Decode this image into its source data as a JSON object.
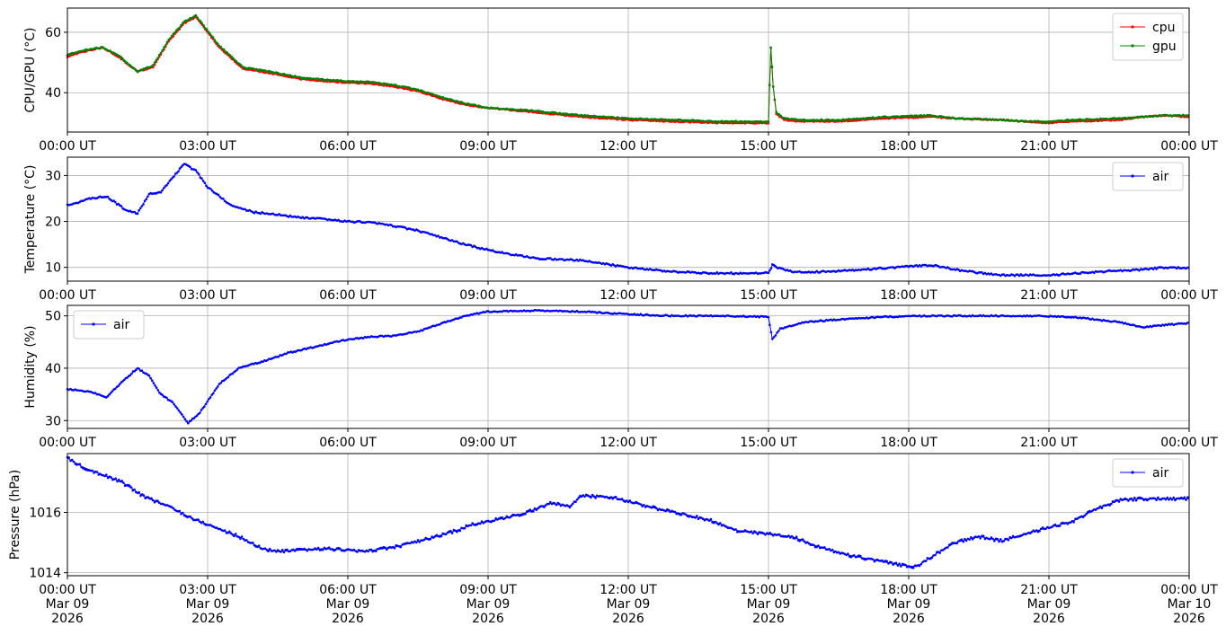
{
  "chart_data": [
    {
      "type": "line",
      "ylabel": "CPU/GPU (°C)",
      "xlim": [
        "2026-03-09T00:00",
        "2026-03-10T00:00"
      ],
      "ylim": [
        27,
        68
      ],
      "yticks": [
        40,
        60
      ],
      "xtick_labels": [
        "00:00 UT",
        "03:00 UT",
        "06:00 UT",
        "09:00 UT",
        "12:00 UT",
        "15:00 UT",
        "18:00 UT",
        "21:00 UT",
        "00:00 UT"
      ],
      "grid": true,
      "legend": "top-right",
      "series": [
        {
          "name": "cpu",
          "color": "#ff0000",
          "x": [
            "00:00",
            "00:20",
            "00:45",
            "01:05",
            "01:30",
            "01:50",
            "02:10",
            "02:30",
            "02:45",
            "03:15",
            "03:45",
            "04:30",
            "05:00",
            "05:45",
            "06:30",
            "07:00",
            "07:30",
            "08:00",
            "08:30",
            "09:00",
            "10:00",
            "11:00",
            "12:00",
            "13:00",
            "14:00",
            "15:00",
            "15:03",
            "15:06",
            "15:10",
            "15:20",
            "15:40",
            "16:30",
            "17:00",
            "17:30",
            "18:30",
            "19:00",
            "20:00",
            "20:30",
            "21:00",
            "21:30",
            "22:30",
            "23:00",
            "23:30",
            "24:00"
          ],
          "y": [
            52,
            53.5,
            55,
            52,
            47,
            48.5,
            57,
            63,
            65,
            55,
            48,
            46,
            44.5,
            43.5,
            43,
            42,
            40.5,
            38,
            36,
            35,
            33.5,
            32,
            31,
            30.5,
            30,
            30,
            55,
            42,
            33,
            31,
            30.5,
            30.5,
            31,
            31.5,
            32,
            31.5,
            31,
            30.5,
            30,
            30.5,
            31,
            32,
            32.5,
            32
          ]
        },
        {
          "name": "gpu",
          "color": "#008000",
          "x": [
            "00:00",
            "00:20",
            "00:45",
            "01:05",
            "01:30",
            "01:50",
            "02:10",
            "02:30",
            "02:45",
            "03:15",
            "03:45",
            "04:30",
            "05:00",
            "05:45",
            "06:30",
            "07:00",
            "07:30",
            "08:00",
            "08:30",
            "09:00",
            "10:00",
            "11:00",
            "12:00",
            "13:00",
            "14:00",
            "15:00",
            "15:03",
            "15:06",
            "15:10",
            "15:20",
            "15:40",
            "16:30",
            "17:00",
            "17:30",
            "18:30",
            "19:00",
            "20:00",
            "20:30",
            "21:00",
            "21:30",
            "22:30",
            "23:00",
            "23:30",
            "24:00"
          ],
          "y": [
            52.5,
            54,
            55,
            52.5,
            47,
            49,
            57.5,
            63.5,
            65.5,
            55.5,
            48.5,
            46.5,
            45,
            44,
            43.5,
            42.5,
            41,
            38.5,
            36.5,
            35,
            34,
            32.5,
            31.5,
            31,
            30.5,
            30.5,
            55,
            42,
            33.5,
            31.5,
            31,
            31,
            31.5,
            32,
            32.5,
            31.5,
            31,
            30.5,
            30.5,
            31,
            31.5,
            32,
            32.5,
            32.5
          ]
        }
      ]
    },
    {
      "type": "line",
      "ylabel": "Temperature (°C)",
      "xlim": [
        "2026-03-09T00:00",
        "2026-03-10T00:00"
      ],
      "ylim": [
        7,
        34
      ],
      "yticks": [
        10,
        20,
        30
      ],
      "xtick_labels": [
        "00:00 UT",
        "03:00 UT",
        "06:00 UT",
        "09:00 UT",
        "12:00 UT",
        "15:00 UT",
        "18:00 UT",
        "21:00 UT",
        "00:00 UT"
      ],
      "grid": true,
      "legend": "top-right",
      "series": [
        {
          "name": "air",
          "color": "#0000ff",
          "x": [
            "00:00",
            "00:30",
            "00:50",
            "01:15",
            "01:30",
            "01:45",
            "02:00",
            "02:15",
            "02:30",
            "02:45",
            "03:00",
            "03:30",
            "04:00",
            "04:30",
            "05:00",
            "05:30",
            "06:00",
            "06:30",
            "07:00",
            "07:30",
            "08:00",
            "08:30",
            "09:00",
            "09:30",
            "10:00",
            "11:00",
            "12:00",
            "13:00",
            "14:00",
            "15:00",
            "15:05",
            "15:10",
            "15:30",
            "16:00",
            "17:00",
            "18:00",
            "18:30",
            "19:00",
            "19:30",
            "20:00",
            "21:00",
            "22:00",
            "23:00",
            "23:30",
            "24:00"
          ],
          "y": [
            23.5,
            25,
            25.5,
            22.5,
            21.8,
            26,
            26.5,
            29.5,
            32.5,
            31,
            27.5,
            23.5,
            22,
            21.5,
            20.8,
            20.5,
            20,
            19.8,
            19,
            18,
            16.5,
            15,
            13.8,
            12.8,
            12,
            11.5,
            10,
            9,
            8.7,
            8.8,
            10.5,
            10,
            9,
            9,
            9.5,
            10.2,
            10.5,
            9.5,
            8.8,
            8.3,
            8.3,
            9,
            9.5,
            10,
            9.8
          ]
        }
      ]
    },
    {
      "type": "line",
      "ylabel": "Humidity (%)",
      "xlim": [
        "2026-03-09T00:00",
        "2026-03-10T00:00"
      ],
      "ylim": [
        28.5,
        52
      ],
      "yticks": [
        30,
        40,
        50
      ],
      "xtick_labels": [
        "00:00 UT",
        "03:00 UT",
        "06:00 UT",
        "09:00 UT",
        "12:00 UT",
        "15:00 UT",
        "18:00 UT",
        "21:00 UT",
        "00:00 UT"
      ],
      "grid": true,
      "legend": "top-left",
      "series": [
        {
          "name": "air",
          "color": "#0000ff",
          "x": [
            "00:00",
            "00:30",
            "00:50",
            "01:15",
            "01:30",
            "01:45",
            "02:00",
            "02:15",
            "02:35",
            "02:50",
            "03:15",
            "03:40",
            "04:15",
            "04:45",
            "05:30",
            "06:00",
            "06:30",
            "07:00",
            "07:30",
            "08:00",
            "08:30",
            "09:00",
            "10:00",
            "11:00",
            "12:00",
            "13:00",
            "14:00",
            "15:00",
            "15:05",
            "15:15",
            "15:45",
            "16:30",
            "17:30",
            "18:30",
            "19:30",
            "20:30",
            "21:30",
            "22:00",
            "22:30",
            "23:00",
            "23:30",
            "24:00"
          ],
          "y": [
            36,
            35.5,
            34.5,
            38,
            40,
            38.5,
            35,
            33.5,
            29.5,
            31.5,
            37,
            40,
            41.5,
            43,
            44.5,
            45.5,
            46,
            46.2,
            47,
            48.5,
            50,
            50.8,
            51,
            50.8,
            50.3,
            50,
            50,
            49.8,
            45.5,
            47.5,
            48.8,
            49.3,
            49.8,
            50,
            50,
            50,
            49.8,
            49.3,
            48.8,
            47.8,
            48.3,
            48.6
          ]
        }
      ]
    },
    {
      "type": "line",
      "ylabel": "Pressure (hPa)",
      "xlim": [
        "2026-03-09T00:00",
        "2026-03-10T00:00"
      ],
      "ylim": [
        1013.9,
        1017.95
      ],
      "yticks": [
        1014,
        1016
      ],
      "xtick_labels": [
        {
          "time": "00:00 UT",
          "date": "Mar 09",
          "year": "2026"
        },
        {
          "time": "03:00 UT",
          "date": "Mar 09",
          "year": "2026"
        },
        {
          "time": "06:00 UT",
          "date": "Mar 09",
          "year": "2026"
        },
        {
          "time": "09:00 UT",
          "date": "Mar 09",
          "year": "2026"
        },
        {
          "time": "12:00 UT",
          "date": "Mar 09",
          "year": "2026"
        },
        {
          "time": "15:00 UT",
          "date": "Mar 09",
          "year": "2026"
        },
        {
          "time": "18:00 UT",
          "date": "Mar 09",
          "year": "2026"
        },
        {
          "time": "21:00 UT",
          "date": "Mar 09",
          "year": "2026"
        },
        {
          "time": "00:00 UT",
          "date": "Mar 10",
          "year": "2026"
        }
      ],
      "grid": true,
      "legend": "top-right",
      "series": [
        {
          "name": "air",
          "color": "#0000ff",
          "x": [
            "00:00",
            "00:20",
            "00:40",
            "01:10",
            "01:40",
            "02:10",
            "02:40",
            "03:10",
            "03:40",
            "04:10",
            "04:30",
            "05:00",
            "05:30",
            "06:00",
            "06:20",
            "07:00",
            "07:40",
            "08:20",
            "08:40",
            "09:20",
            "09:50",
            "10:20",
            "10:45",
            "11:00",
            "11:40",
            "12:10",
            "12:40",
            "13:10",
            "13:50",
            "14:20",
            "14:50",
            "15:30",
            "16:00",
            "16:40",
            "17:20",
            "17:50",
            "18:10",
            "18:40",
            "19:00",
            "19:30",
            "20:00",
            "20:30",
            "21:00",
            "21:30",
            "22:00",
            "22:30",
            "23:00",
            "23:30",
            "24:00"
          ],
          "y": [
            1017.8,
            1017.5,
            1017.3,
            1017,
            1016.5,
            1016.2,
            1015.8,
            1015.5,
            1015.2,
            1014.8,
            1014.7,
            1014.75,
            1014.8,
            1014.75,
            1014.7,
            1014.85,
            1015.1,
            1015.4,
            1015.6,
            1015.8,
            1016,
            1016.3,
            1016.2,
            1016.55,
            1016.5,
            1016.3,
            1016.1,
            1015.95,
            1015.7,
            1015.4,
            1015.3,
            1015.2,
            1014.9,
            1014.6,
            1014.4,
            1014.25,
            1014.2,
            1014.7,
            1015,
            1015.2,
            1015.05,
            1015.3,
            1015.5,
            1015.7,
            1016.1,
            1016.4,
            1016.45,
            1016.45,
            1016.45
          ]
        }
      ]
    }
  ]
}
